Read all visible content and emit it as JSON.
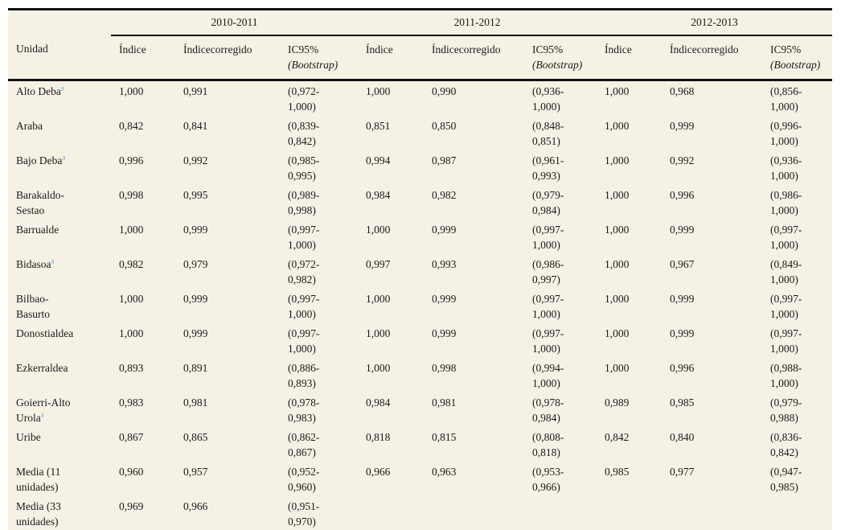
{
  "table": {
    "background": "#f6f1e5",
    "rule_color": "#121212",
    "footnote_marker_color": "#58a8dd",
    "year_groups": [
      "2010-2011",
      "2011-2012",
      "2012-2013"
    ],
    "col_headers": {
      "unidad": "Unidad",
      "indice": "Índice",
      "indice_corregido": "Índicecorregido",
      "ic95": "IC95%",
      "ic95_note": "(Bootstrap)"
    },
    "rows": [
      {
        "name": "Alto Deba",
        "sup": "a",
        "values": [
          "1,000",
          "0,991",
          "(0,972-\n1,000)",
          "1,000",
          "0,990",
          "(0,936-\n1,000)",
          "1,000",
          "0,968",
          "(0,856-\n1,000)"
        ]
      },
      {
        "name": "Araba",
        "sup": "",
        "values": [
          "0,842",
          "0,841",
          "(0,839-\n0,842)",
          "0,851",
          "0,850",
          "(0,848-\n0,851)",
          "1,000",
          "0,999",
          "(0,996-\n1,000)"
        ]
      },
      {
        "name": "Bajo Deba",
        "sup": "a",
        "values": [
          "0,996",
          "0,992",
          "(0,985-\n0,995)",
          "0,994",
          "0,987",
          "(0,961-\n0,993)",
          "1,000",
          "0,992",
          "(0,936-\n1,000)"
        ]
      },
      {
        "name": "Barakaldo-\nSestao",
        "sup": "",
        "values": [
          "0,998",
          "0,995",
          "(0,989-\n0,998)",
          "0,984",
          "0,982",
          "(0,979-\n0,984)",
          "1,000",
          "0,996",
          "(0,986-\n1,000)"
        ]
      },
      {
        "name": "Barrualde",
        "sup": "",
        "values": [
          "1,000",
          "0,999",
          "(0,997-\n1,000)",
          "1,000",
          "0,999",
          "(0,997-\n1,000)",
          "1,000",
          "0,999",
          "(0,997-\n1,000)"
        ]
      },
      {
        "name": "Bidasoa",
        "sup": "a",
        "values": [
          "0,982",
          "0,979",
          "(0,972-\n0,982)",
          "0,997",
          "0,993",
          "(0,986-\n0,997)",
          "1,000",
          "0,967",
          "(0,849-\n1,000)"
        ]
      },
      {
        "name": "Bilbao-\nBasurto",
        "sup": "",
        "values": [
          "1,000",
          "0,999",
          "(0,997-\n1,000)",
          "1,000",
          "0,999",
          "(0,997-\n1,000)",
          "1,000",
          "0,999",
          "(0,997-\n1,000)"
        ]
      },
      {
        "name": "Donostialdea",
        "sup": "",
        "values": [
          "1,000",
          "0,999",
          "(0,997-\n1,000)",
          "1,000",
          "0,999",
          "(0,997-\n1,000)",
          "1,000",
          "0,999",
          "(0,997-\n1,000)"
        ]
      },
      {
        "name": "Ezkerraldea",
        "sup": "",
        "values": [
          "0,893",
          "0,891",
          "(0,886-\n0,893)",
          "1,000",
          "0,998",
          "(0,994-\n1,000)",
          "1,000",
          "0,996",
          "(0,988-\n1,000)"
        ]
      },
      {
        "name": "Goierri-Alto\nUrola",
        "sup": "a",
        "values": [
          "0,983",
          "0,981",
          "(0,978-\n0,983)",
          "0,984",
          "0,981",
          "(0,978-\n0,984)",
          "0,989",
          "0,985",
          "(0,979-\n0,988)"
        ]
      },
      {
        "name": "Uribe",
        "sup": "",
        "values": [
          "0,867",
          "0,865",
          "(0,862-\n0,867)",
          "0,818",
          "0,815",
          "(0,808-\n0,818)",
          "0,842",
          "0,840",
          "(0,836-\n0,842)"
        ]
      },
      {
        "name": "Media (11\nunidades)",
        "sup": "",
        "values": [
          "0,960",
          "0,957",
          "(0,952-\n0,960)",
          "0,966",
          "0,963",
          "(0,953-\n0,966)",
          "0,985",
          "0,977",
          "(0,947-\n0,985)"
        ]
      },
      {
        "name": "Media (33\nunidades)",
        "sup": "",
        "values": [
          "0,969",
          "0,966",
          "(0,951-\n0,970)",
          "",
          "",
          "",
          "",
          "",
          ""
        ]
      }
    ]
  }
}
